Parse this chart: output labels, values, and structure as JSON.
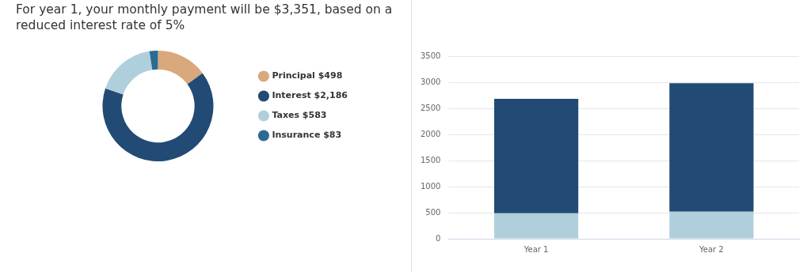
{
  "chart_data": [
    {
      "type": "donut",
      "title": "For year 1, your monthly payment will be $3,351, based on a reduced interest rate of 5%",
      "categories": [
        "Principal $498",
        "Interest $2,186",
        "Taxes $583",
        "Insurance $83"
      ],
      "values": [
        498,
        2186,
        583,
        83
      ],
      "colors": [
        "#d9a87c",
        "#214b75",
        "#b0cfdd",
        "#2c6a94"
      ],
      "legend": "right"
    },
    {
      "type": "bar",
      "stacked": true,
      "categories": [
        "Year 1",
        "Year 2"
      ],
      "series": [
        {
          "color": "#b0cfdd",
          "values": [
            490,
            520
          ]
        },
        {
          "color": "#214b75",
          "values": [
            2190,
            2460
          ]
        }
      ],
      "ylim": [
        0,
        3500
      ],
      "yticks": [
        0,
        500,
        1000,
        1500,
        2000,
        2500,
        3000,
        3500
      ],
      "grid": "y"
    }
  ]
}
